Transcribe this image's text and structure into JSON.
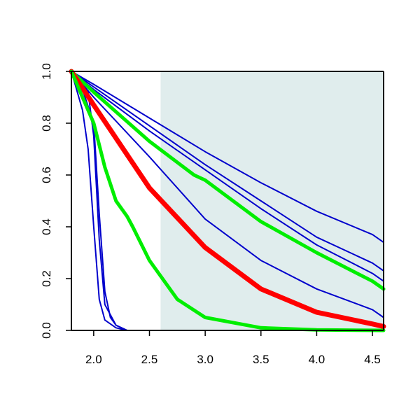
{
  "chart_data": {
    "type": "line",
    "title": "",
    "xlabel": "",
    "ylabel": "",
    "xlim": [
      1.8,
      4.6
    ],
    "ylim": [
      0.0,
      1.0
    ],
    "x_ticks": [
      2.0,
      2.5,
      3.0,
      3.5,
      4.0,
      4.5
    ],
    "x_tick_labels": [
      "2.0",
      "2.5",
      "3.0",
      "3.5",
      "4.0",
      "4.5"
    ],
    "y_ticks": [
      0.0,
      0.2,
      0.4,
      0.6,
      0.8,
      1.0
    ],
    "y_tick_labels": [
      "0.0",
      "0.2",
      "0.4",
      "0.6",
      "0.8",
      "1.0"
    ],
    "grid": false,
    "legend": "none",
    "shaded_region": {
      "x_from": 2.6,
      "x_to": 4.6,
      "color": "#e0eded"
    },
    "series": [
      {
        "color": "#0000cc",
        "width": 2,
        "x": [
          1.8,
          2.0,
          2.5,
          3.0,
          3.5,
          4.0,
          4.5,
          4.6
        ],
        "values": [
          1.0,
          0.95,
          0.82,
          0.69,
          0.57,
          0.46,
          0.37,
          0.34
        ]
      },
      {
        "color": "#0000cc",
        "width": 2,
        "x": [
          1.8,
          2.0,
          2.5,
          3.0,
          3.5,
          4.0,
          4.5,
          4.6
        ],
        "values": [
          1.0,
          0.94,
          0.79,
          0.64,
          0.5,
          0.36,
          0.26,
          0.23
        ]
      },
      {
        "color": "#0000cc",
        "width": 2,
        "x": [
          1.8,
          2.0,
          2.5,
          3.0,
          3.5,
          4.0,
          4.5,
          4.6
        ],
        "values": [
          1.0,
          0.93,
          0.77,
          0.62,
          0.47,
          0.33,
          0.22,
          0.19
        ]
      },
      {
        "color": "#0000cc",
        "width": 2,
        "x": [
          1.8,
          2.0,
          2.5,
          3.0,
          3.5,
          4.0,
          4.5,
          4.6
        ],
        "values": [
          1.0,
          0.9,
          0.67,
          0.43,
          0.27,
          0.16,
          0.08,
          0.05
        ]
      },
      {
        "color": "#0000cc",
        "width": 2,
        "x": [
          1.8,
          1.9,
          1.95,
          2.0,
          2.05,
          2.1,
          2.2,
          2.3,
          2.5,
          4.6
        ],
        "values": [
          1.0,
          0.85,
          0.7,
          0.4,
          0.12,
          0.04,
          0.01,
          0.0,
          0.0,
          0.0
        ]
      },
      {
        "color": "#0000cc",
        "width": 2,
        "x": [
          1.8,
          1.9,
          2.0,
          2.05,
          2.1,
          2.15,
          2.2,
          2.3,
          2.5,
          4.6
        ],
        "values": [
          1.0,
          0.93,
          0.8,
          0.45,
          0.15,
          0.05,
          0.02,
          0.0,
          0.0,
          0.0
        ]
      },
      {
        "color": "#0000cc",
        "width": 2,
        "x": [
          1.8,
          1.95,
          2.0,
          2.05,
          2.1,
          2.2,
          2.3,
          2.5,
          4.6
        ],
        "values": [
          1.0,
          0.92,
          0.75,
          0.35,
          0.1,
          0.02,
          0.0,
          0.0,
          0.0
        ]
      },
      {
        "color": "#00ee00",
        "width": 5,
        "x": [
          1.8,
          2.0,
          2.5,
          2.9,
          3.0,
          3.5,
          4.0,
          4.5,
          4.6
        ],
        "values": [
          1.0,
          0.92,
          0.73,
          0.6,
          0.58,
          0.42,
          0.3,
          0.19,
          0.16
        ]
      },
      {
        "color": "#ff0000",
        "width": 7,
        "x": [
          1.8,
          2.0,
          2.5,
          3.0,
          3.5,
          4.0,
          4.5,
          4.6
        ],
        "values": [
          1.0,
          0.87,
          0.55,
          0.32,
          0.16,
          0.07,
          0.025,
          0.015
        ]
      },
      {
        "color": "#00ee00",
        "width": 5,
        "x": [
          1.8,
          1.9,
          2.0,
          2.1,
          2.2,
          2.3,
          2.35,
          2.5,
          2.75,
          3.0,
          3.5,
          4.0,
          4.6
        ],
        "values": [
          1.0,
          0.9,
          0.8,
          0.63,
          0.5,
          0.44,
          0.4,
          0.27,
          0.12,
          0.05,
          0.01,
          0.002,
          0.0
        ]
      }
    ]
  }
}
